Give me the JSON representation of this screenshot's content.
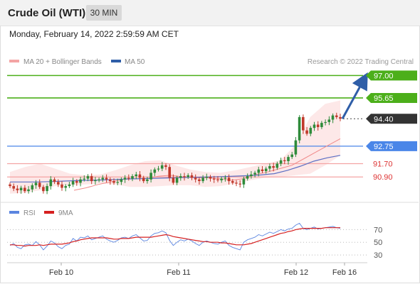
{
  "header": {
    "title": "Crude Oil (WTI)",
    "timeframe": "30 MIN"
  },
  "datetime": "Monday, February 14, 2022 2:59:59 AM CET",
  "legend": {
    "ma20_bb": "MA 20 + Bollinger Bands",
    "ma50": "MA 50",
    "credit": "Research © 2022 Trading Central",
    "rsi": "RSI",
    "rsi_ma": "9MA"
  },
  "colors": {
    "resistance": "#4caf1a",
    "support": "#f4a4a4",
    "pivot": "#4a86e8",
    "last": "#333333",
    "up_candle": "#2e8b3a",
    "down_candle": "#c0392b",
    "ma50": "#5b6fc4",
    "ma20": "#f08a8a",
    "band_fill": "#fde4e4",
    "rsi": "#5b85e0",
    "rsi_ma": "#d62020"
  },
  "chart_data": [
    {
      "type": "candlestick",
      "title": "Crude Oil (WTI)",
      "timeframe": "30 MIN",
      "x_tick_labels": [
        "Feb 10",
        "Feb 11",
        "Feb 12",
        "Feb 16"
      ],
      "y_range": [
        89.8,
        97.4
      ],
      "levels": [
        {
          "label": "97.00",
          "value": 97.0,
          "kind": "resistance"
        },
        {
          "label": "95.65",
          "value": 95.65,
          "kind": "resistance"
        },
        {
          "label": "94.40",
          "value": 94.4,
          "kind": "last"
        },
        {
          "label": "92.75",
          "value": 92.75,
          "kind": "pivot"
        },
        {
          "label": "91.70",
          "value": 91.7,
          "kind": "support"
        },
        {
          "label": "90.90",
          "value": 90.9,
          "kind": "support"
        }
      ],
      "close": [
        90.35,
        90.2,
        90.1,
        90.25,
        90.05,
        90.15,
        90.4,
        90.55,
        90.3,
        90.05,
        90.35,
        90.75,
        90.6,
        90.45,
        90.25,
        90.35,
        90.45,
        90.65,
        90.55,
        90.75,
        90.8,
        90.95,
        90.65,
        90.7,
        90.75,
        90.85,
        90.75,
        90.65,
        90.55,
        90.6,
        90.75,
        90.85,
        90.8,
        90.95,
        91.05,
        90.85,
        90.65,
        90.75,
        91.15,
        91.35,
        91.4,
        91.6,
        91.5,
        90.85,
        90.55,
        90.85,
        90.95,
        90.9,
        91.0,
        90.85,
        90.75,
        90.65,
        90.85,
        90.9,
        90.8,
        90.75,
        90.7,
        90.8,
        90.85,
        90.65,
        90.55,
        90.5,
        90.45,
        90.8,
        90.95,
        91.05,
        91.15,
        91.35,
        91.25,
        91.4,
        91.55,
        91.45,
        91.7,
        91.9,
        91.85,
        92.1,
        92.25,
        93.1,
        94.5,
        93.7,
        93.5,
        93.85,
        94.05,
        93.9,
        94.15,
        94.2,
        94.35,
        94.6,
        94.5,
        94.4
      ],
      "ma50": [
        90.6,
        90.6,
        90.6,
        90.62,
        90.65,
        90.68,
        90.7,
        90.72,
        90.75,
        90.78,
        90.8,
        90.82,
        90.84,
        90.86,
        90.88,
        90.9,
        90.92,
        90.95,
        90.98,
        91.02,
        91.1,
        91.3,
        91.55,
        91.85,
        92.05,
        92.2
      ],
      "ma20": [
        90.1,
        90.25,
        90.45,
        90.6,
        90.75,
        90.8,
        90.8,
        90.95,
        91.0,
        90.9,
        90.85,
        90.85,
        90.8,
        90.7,
        90.8,
        91.05,
        91.2,
        91.4,
        91.6,
        92.0,
        92.4,
        92.8,
        93.2
      ],
      "bb_upper": [
        91.2,
        91.5,
        91.7,
        91.4,
        91.1,
        91.0,
        91.05,
        91.3,
        91.6,
        91.85,
        91.9,
        91.6,
        91.35,
        91.2,
        91.15,
        91.3,
        91.5,
        91.7,
        91.9,
        92.8,
        94.5,
        95.3,
        95.5
      ],
      "bb_lower": [
        89.9,
        89.95,
        90.1,
        90.35,
        90.4,
        90.45,
        90.5,
        90.45,
        90.3,
        90.3,
        90.35,
        90.4,
        90.4,
        90.3,
        90.35,
        90.5,
        90.7,
        90.85,
        90.9,
        91.0,
        91.1,
        91.6,
        92.2
      ],
      "forecast_arrow": {
        "from": 94.4,
        "to": 97.0
      }
    },
    {
      "type": "line",
      "title": "RSI",
      "series": [
        {
          "name": "RSI",
          "values": [
            45,
            48,
            42,
            40,
            46,
            47,
            45,
            51,
            46,
            38,
            44,
            52,
            49,
            43,
            40,
            45,
            47,
            56,
            52,
            58,
            57,
            60,
            54,
            56,
            58,
            60,
            55,
            52,
            50,
            53,
            57,
            58,
            56,
            60,
            62,
            57,
            52,
            53,
            60,
            64,
            65,
            68,
            65,
            53,
            45,
            50,
            54,
            52,
            55,
            52,
            48,
            45,
            50,
            52,
            50,
            48,
            47,
            50,
            52,
            45,
            42,
            40,
            38,
            50,
            54,
            56,
            58,
            62,
            60,
            63,
            66,
            64,
            67,
            70,
            68,
            71,
            72,
            77,
            80,
            72,
            70,
            72,
            74,
            71,
            72,
            73,
            74,
            75,
            73,
            72
          ]
        },
        {
          "name": "9MA",
          "values": [
            46,
            46,
            45,
            45,
            44,
            45,
            45,
            45,
            46,
            45,
            46,
            47,
            47,
            47,
            47,
            48,
            49,
            51,
            52,
            54,
            55,
            56,
            57,
            57,
            57,
            57,
            57,
            56,
            55,
            55,
            56,
            56,
            56,
            57,
            58,
            58,
            58,
            58,
            58,
            59,
            60,
            61,
            62,
            61,
            59,
            58,
            57,
            56,
            55,
            54,
            53,
            52,
            51,
            51,
            50,
            50,
            50,
            49,
            49,
            48,
            47,
            46,
            46,
            46,
            47,
            48,
            50,
            52,
            54,
            56,
            58,
            60,
            62,
            64,
            65,
            67,
            68,
            70,
            71,
            72,
            72,
            72,
            72,
            72,
            72,
            73,
            73,
            73,
            73,
            73
          ]
        }
      ],
      "ylim": [
        20,
        85
      ],
      "y_tick_labels": [
        "70",
        "50",
        "30"
      ]
    }
  ]
}
